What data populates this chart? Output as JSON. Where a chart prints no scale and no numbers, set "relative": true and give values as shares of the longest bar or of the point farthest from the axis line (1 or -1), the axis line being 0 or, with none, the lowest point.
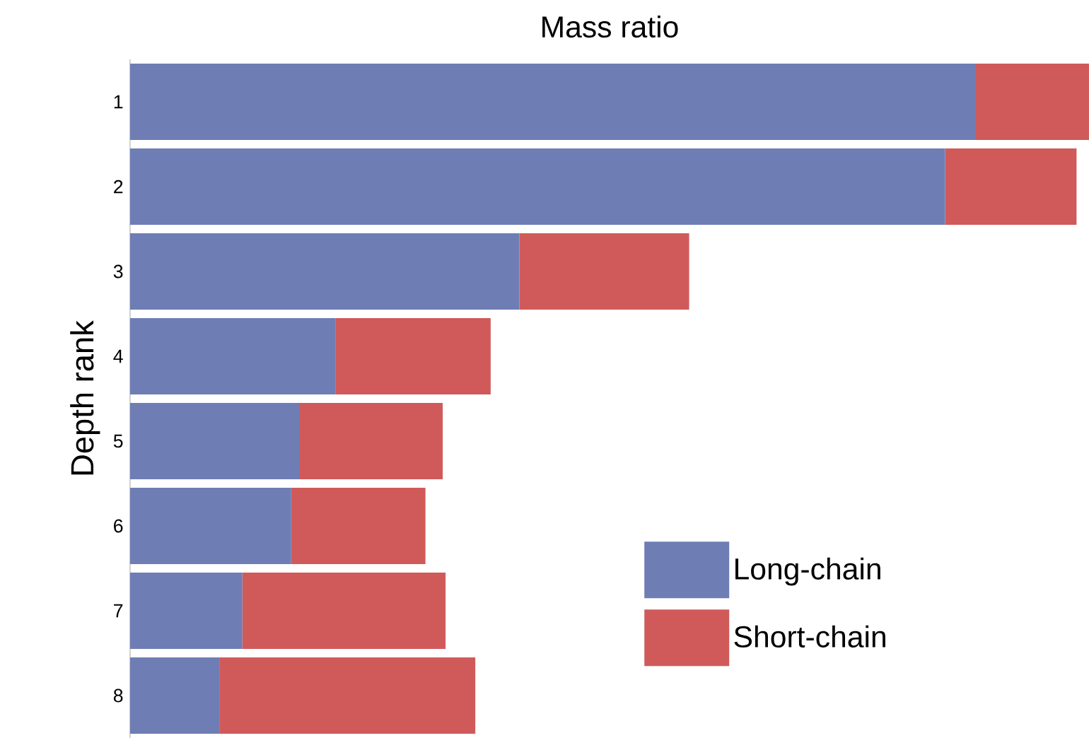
{
  "chart_data": {
    "type": "bar",
    "orientation": "horizontal",
    "stacked": true,
    "relative": true,
    "title": "Mass ratio",
    "ylabel": "Depth rank",
    "categories": [
      "1",
      "2",
      "3",
      "4",
      "5",
      "6",
      "7",
      "8"
    ],
    "series": [
      {
        "name": "Long-chain",
        "color": "#6f7db5",
        "values": [
          0.882,
          0.85,
          0.406,
          0.214,
          0.177,
          0.168,
          0.117,
          0.093
        ]
      },
      {
        "name": "Short-chain",
        "color": "#d05a5a",
        "values": [
          0.118,
          0.137,
          0.177,
          0.162,
          0.149,
          0.14,
          0.212,
          0.267
        ]
      }
    ],
    "legend": "bottom right"
  }
}
